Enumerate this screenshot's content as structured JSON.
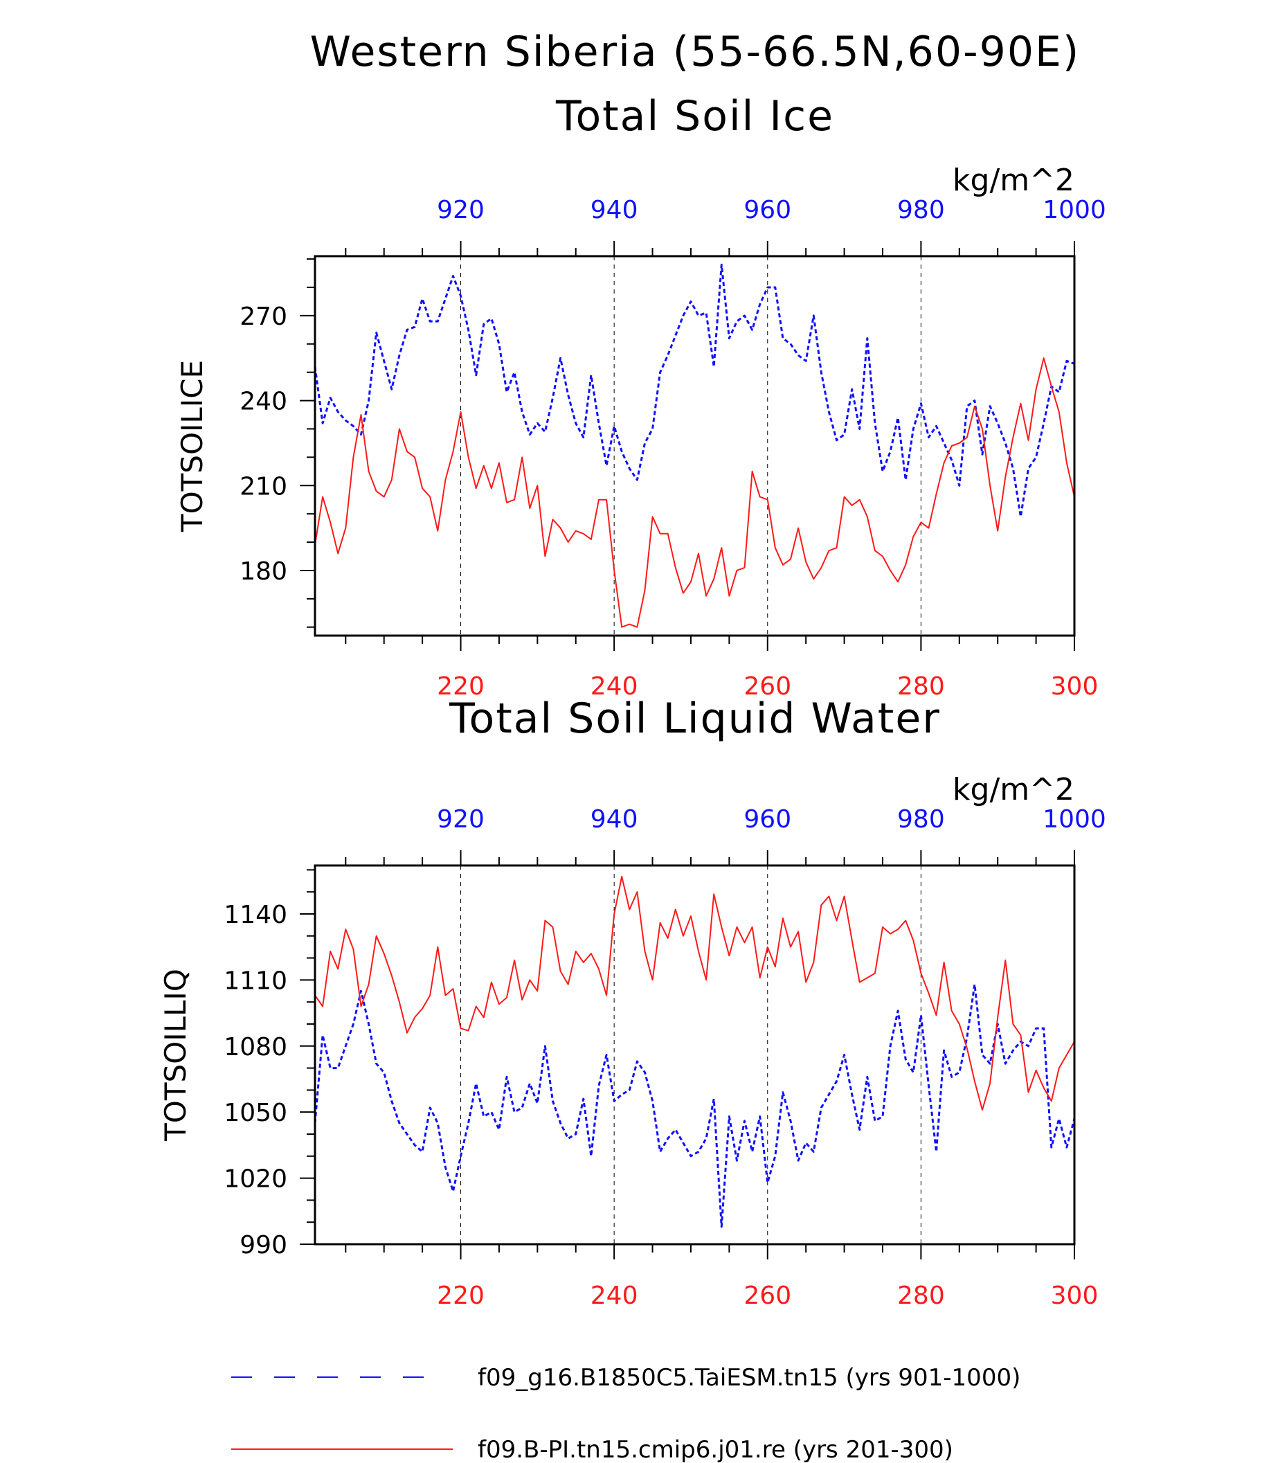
{
  "figure": {
    "main_title": "Western Siberia (55-66.5N,60-90E)"
  },
  "chart_data": [
    {
      "type": "line",
      "title": "Total Soil Ice",
      "ylabel": "TOTSOILICE",
      "units": "kg/m^2",
      "ylim": [
        157,
        291
      ],
      "yticks": [
        180,
        210,
        240,
        270
      ],
      "top_axis": {
        "range": [
          901,
          1000
        ],
        "ticks": [
          920,
          940,
          960,
          980,
          1000
        ]
      },
      "bottom_axis": {
        "range": [
          201,
          300
        ],
        "ticks": [
          220,
          240,
          260,
          280,
          300
        ]
      },
      "series": [
        {
          "name": "f09_g16.B1850C5.TaiESM.tn15 (yrs 901-1000)",
          "color": "#1010ff",
          "dash": true,
          "axis": "top",
          "x_start": 901,
          "values": [
            252,
            232,
            241,
            236,
            233,
            231,
            228,
            240,
            264,
            254,
            244,
            256,
            265,
            266,
            276,
            268,
            268,
            276,
            284,
            277,
            265,
            249,
            267,
            269,
            260,
            243,
            250,
            236,
            228,
            232,
            229,
            241,
            255,
            242,
            232,
            227,
            249,
            232,
            217,
            231,
            222,
            216,
            212,
            225,
            230,
            250,
            256,
            263,
            270,
            275,
            270,
            271,
            252,
            288,
            262,
            268,
            270,
            265,
            274,
            280,
            280,
            262,
            260,
            256,
            254,
            270,
            250,
            236,
            226,
            228,
            244,
            230,
            262,
            232,
            215,
            222,
            234,
            212,
            230,
            239,
            227,
            231,
            225,
            219,
            210,
            238,
            240,
            221,
            238,
            232,
            225,
            216,
            199,
            216,
            220,
            232,
            245,
            243,
            254,
            253
          ]
        },
        {
          "name": "f09.B-PI.tn15.cmip6.j01.re (yrs 201-300)",
          "color": "#ff1a1a",
          "dash": false,
          "axis": "bottom",
          "x_start": 201,
          "values": [
            189,
            206,
            197,
            186,
            195,
            220,
            235,
            215,
            208,
            206,
            212,
            230,
            222,
            220,
            209,
            206,
            194,
            212,
            222,
            236,
            220,
            209,
            217,
            209,
            218,
            204,
            205,
            220,
            202,
            210,
            185,
            198,
            195,
            190,
            194,
            193,
            191,
            205,
            205,
            180,
            160,
            161,
            160,
            173,
            199,
            193,
            193,
            181,
            172,
            176,
            186,
            171,
            177,
            188,
            171,
            180,
            181,
            215,
            206,
            205,
            188,
            182,
            184,
            195,
            183,
            177,
            181,
            187,
            188,
            206,
            203,
            205,
            199,
            187,
            185,
            180,
            176,
            182,
            192,
            197,
            195,
            207,
            218,
            224,
            225,
            227,
            238,
            230,
            210,
            194,
            213,
            227,
            239,
            226,
            244,
            255,
            245,
            236,
            218,
            206
          ]
        }
      ]
    },
    {
      "type": "line",
      "title": "Total Soil Liquid Water",
      "ylabel": "TOTSOILLIQ",
      "units": "kg/m^2",
      "ylim": [
        990,
        1162
      ],
      "yticks": [
        990,
        1020,
        1050,
        1080,
        1110,
        1140
      ],
      "top_axis": {
        "range": [
          901,
          1000
        ],
        "ticks": [
          920,
          940,
          960,
          980,
          1000
        ]
      },
      "bottom_axis": {
        "range": [
          201,
          300
        ],
        "ticks": [
          220,
          240,
          260,
          280,
          300
        ]
      },
      "series": [
        {
          "name": "f09_g16.B1850C5.TaiESM.tn15 (yrs 901-1000)",
          "color": "#1010ff",
          "dash": true,
          "axis": "top",
          "x_start": 901,
          "values": [
            1045,
            1085,
            1070,
            1070,
            1080,
            1090,
            1105,
            1090,
            1072,
            1068,
            1055,
            1045,
            1040,
            1035,
            1032,
            1052,
            1045,
            1025,
            1014,
            1030,
            1045,
            1063,
            1048,
            1050,
            1042,
            1066,
            1050,
            1052,
            1063,
            1054,
            1080,
            1055,
            1045,
            1038,
            1040,
            1056,
            1030,
            1062,
            1076,
            1055,
            1058,
            1060,
            1073,
            1068,
            1055,
            1032,
            1038,
            1042,
            1036,
            1030,
            1032,
            1038,
            1056,
            998,
            1048,
            1028,
            1046,
            1032,
            1048,
            1018,
            1030,
            1059,
            1046,
            1028,
            1036,
            1032,
            1052,
            1058,
            1064,
            1076,
            1058,
            1042,
            1066,
            1046,
            1048,
            1080,
            1096,
            1074,
            1068,
            1094,
            1062,
            1032,
            1078,
            1066,
            1068,
            1084,
            1108,
            1076,
            1072,
            1090,
            1072,
            1078,
            1082,
            1080,
            1088,
            1088,
            1034,
            1047,
            1034,
            1047
          ]
        },
        {
          "name": "f09.B-PI.tn15.cmip6.j01.re (yrs 201-300)",
          "color": "#ff1a1a",
          "dash": false,
          "axis": "bottom",
          "x_start": 201,
          "values": [
            1103,
            1098,
            1123,
            1115,
            1133,
            1124,
            1098,
            1108,
            1130,
            1122,
            1112,
            1100,
            1086,
            1093,
            1097,
            1103,
            1125,
            1103,
            1106,
            1088,
            1087,
            1098,
            1093,
            1109,
            1099,
            1102,
            1119,
            1101,
            1110,
            1105,
            1137,
            1134,
            1114,
            1108,
            1123,
            1118,
            1122,
            1115,
            1103,
            1140,
            1157,
            1142,
            1150,
            1123,
            1110,
            1136,
            1129,
            1142,
            1130,
            1139,
            1123,
            1110,
            1149,
            1134,
            1121,
            1134,
            1127,
            1134,
            1111,
            1125,
            1116,
            1138,
            1125,
            1132,
            1109,
            1118,
            1144,
            1148,
            1137,
            1148,
            1128,
            1109,
            1111,
            1113,
            1134,
            1131,
            1133,
            1137,
            1128,
            1113,
            1104,
            1094,
            1118,
            1096,
            1090,
            1079,
            1064,
            1051,
            1063,
            1093,
            1119,
            1090,
            1085,
            1059,
            1069,
            1061,
            1055,
            1070,
            1076,
            1082
          ]
        }
      ]
    }
  ],
  "legend": [
    {
      "label": "f09_g16.B1850C5.TaiESM.tn15 (yrs 901-1000)",
      "color": "#1010ff",
      "dash": true
    },
    {
      "label": "f09.B-PI.tn15.cmip6.j01.re (yrs 201-300)",
      "color": "#ff1a1a",
      "dash": false
    }
  ]
}
